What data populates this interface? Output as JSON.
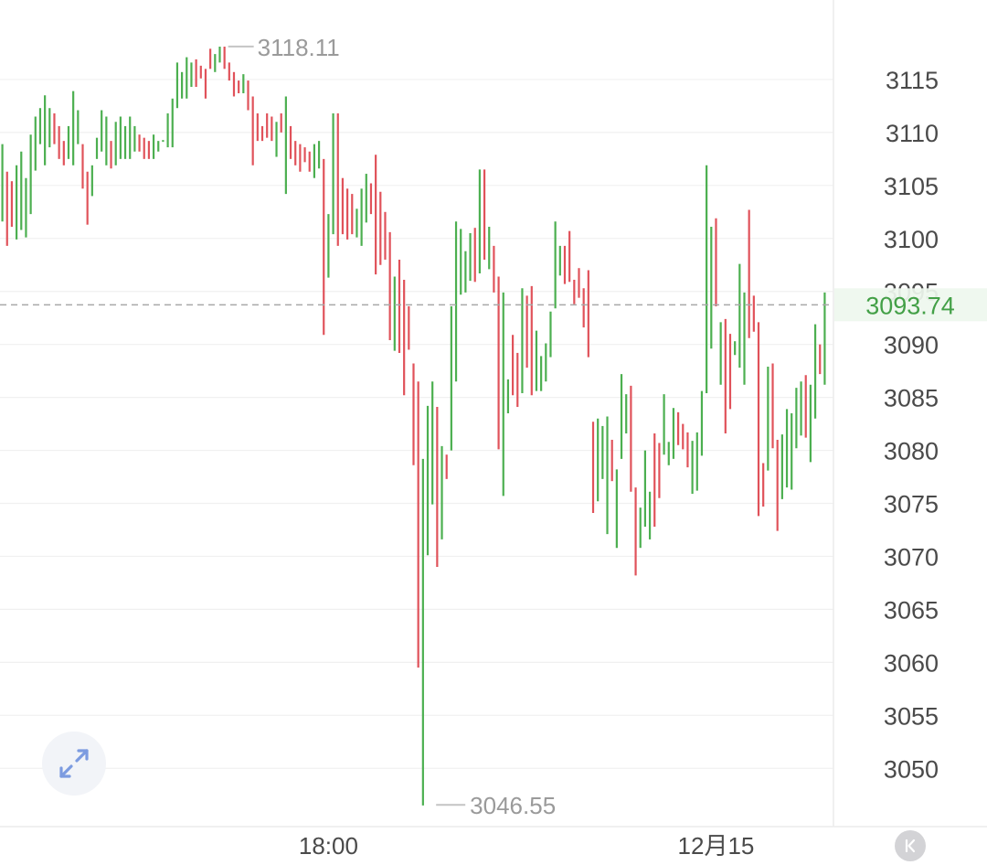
{
  "chart_data": {
    "type": "candlestick",
    "title": "",
    "xlabel": "",
    "ylabel": "",
    "ylim": [
      3044.5,
      3122.5
    ],
    "y_ticks": [
      3050,
      3055,
      3060,
      3065,
      3070,
      3075,
      3080,
      3085,
      3090,
      3095,
      3100,
      3105,
      3110,
      3115
    ],
    "y_tick_labels": [
      "3050",
      "3055",
      "3060",
      "3065",
      "3070",
      "3075",
      "3080",
      "3085",
      "3090",
      "3095",
      "3100",
      "3105",
      "3110",
      "3115"
    ],
    "x_labels": [
      {
        "label": "18:00",
        "index": 69
      },
      {
        "label": "12月15",
        "index": 151
      }
    ],
    "grid": true,
    "current_price": 3093.74,
    "current_price_label": "3093.74",
    "max_marker": {
      "label": "3118.11",
      "index": 47,
      "value": 3118.11
    },
    "min_marker": {
      "label": "3046.55",
      "index": 91,
      "value": 3046.55
    },
    "up_color": "#4caf50",
    "down_color": "#e0525a",
    "price_color": "#43a047",
    "candles": [
      {
        "h": 3108.9,
        "l": 3101.6,
        "dir": "up"
      },
      {
        "h": 3106.3,
        "l": 3099.3,
        "dir": "down"
      },
      {
        "h": 3105.4,
        "l": 3101.1,
        "dir": "down"
      },
      {
        "h": 3106.9,
        "l": 3099.9,
        "dir": "up"
      },
      {
        "h": 3108.2,
        "l": 3100.8,
        "dir": "up"
      },
      {
        "h": 3105.7,
        "l": 3100.1,
        "dir": "up"
      },
      {
        "h": 3109.8,
        "l": 3102.3,
        "dir": "up"
      },
      {
        "h": 3111.5,
        "l": 3106.4,
        "dir": "up"
      },
      {
        "h": 3112.3,
        "l": 3108.9,
        "dir": "up"
      },
      {
        "h": 3113.5,
        "l": 3106.9,
        "dir": "up"
      },
      {
        "h": 3112.3,
        "l": 3108.6,
        "dir": "up"
      },
      {
        "h": 3111.8,
        "l": 3108.9,
        "dir": "down"
      },
      {
        "h": 3110.6,
        "l": 3107.5,
        "dir": "down"
      },
      {
        "h": 3109.2,
        "l": 3106.9,
        "dir": "down"
      },
      {
        "h": 3110.6,
        "l": 3107.5,
        "dir": "up"
      },
      {
        "h": 3113.9,
        "l": 3106.9,
        "dir": "up"
      },
      {
        "h": 3112.1,
        "l": 3108.9,
        "dir": "up"
      },
      {
        "h": 3108.9,
        "l": 3104.7,
        "dir": "down"
      },
      {
        "h": 3106.3,
        "l": 3101.3,
        "dir": "down"
      },
      {
        "h": 3106.9,
        "l": 3104.0,
        "dir": "up"
      },
      {
        "h": 3109.5,
        "l": 3107.5,
        "dir": "up"
      },
      {
        "h": 3112.1,
        "l": 3108.2,
        "dir": "up"
      },
      {
        "h": 3111.5,
        "l": 3106.9,
        "dir": "up"
      },
      {
        "h": 3109.2,
        "l": 3106.6,
        "dir": "down"
      },
      {
        "h": 3111.0,
        "l": 3106.9,
        "dir": "up"
      },
      {
        "h": 3111.5,
        "l": 3107.5,
        "dir": "up"
      },
      {
        "h": 3110.6,
        "l": 3107.5,
        "dir": "up"
      },
      {
        "h": 3111.5,
        "l": 3107.5,
        "dir": "up"
      },
      {
        "h": 3110.6,
        "l": 3108.2,
        "dir": "up"
      },
      {
        "h": 3109.8,
        "l": 3108.2,
        "dir": "down"
      },
      {
        "h": 3109.5,
        "l": 3107.5,
        "dir": "down"
      },
      {
        "h": 3109.2,
        "l": 3107.5,
        "dir": "down"
      },
      {
        "h": 3109.8,
        "l": 3107.5,
        "dir": "up"
      },
      {
        "h": 3109.2,
        "l": 3108.2,
        "dir": "up"
      },
      {
        "h": 3109.2,
        "l": 3109.2,
        "dir": "up"
      },
      {
        "h": 3111.8,
        "l": 3108.6,
        "dir": "up"
      },
      {
        "h": 3113.2,
        "l": 3108.6,
        "dir": "up"
      },
      {
        "h": 3116.6,
        "l": 3112.3,
        "dir": "up"
      },
      {
        "h": 3115.7,
        "l": 3113.2,
        "dir": "up"
      },
      {
        "h": 3117.1,
        "l": 3113.2,
        "dir": "up"
      },
      {
        "h": 3116.6,
        "l": 3114.3,
        "dir": "up"
      },
      {
        "h": 3116.9,
        "l": 3114.3,
        "dir": "down"
      },
      {
        "h": 3116.3,
        "l": 3115.1,
        "dir": "down"
      },
      {
        "h": 3116.0,
        "l": 3113.2,
        "dir": "down"
      },
      {
        "h": 3117.9,
        "l": 3116.0,
        "dir": "down"
      },
      {
        "h": 3117.4,
        "l": 3115.7,
        "dir": "up"
      },
      {
        "h": 3118.1,
        "l": 3116.6,
        "dir": "up"
      },
      {
        "h": 3118.1,
        "l": 3116.0,
        "dir": "down"
      },
      {
        "h": 3116.6,
        "l": 3114.9,
        "dir": "down"
      },
      {
        "h": 3115.7,
        "l": 3113.4,
        "dir": "down"
      },
      {
        "h": 3114.9,
        "l": 3113.7,
        "dir": "down"
      },
      {
        "h": 3115.5,
        "l": 3113.7,
        "dir": "up"
      },
      {
        "h": 3114.9,
        "l": 3112.1,
        "dir": "down"
      },
      {
        "h": 3113.4,
        "l": 3106.9,
        "dir": "down"
      },
      {
        "h": 3111.8,
        "l": 3109.2,
        "dir": "down"
      },
      {
        "h": 3110.6,
        "l": 3109.2,
        "dir": "down"
      },
      {
        "h": 3111.8,
        "l": 3109.5,
        "dir": "down"
      },
      {
        "h": 3111.5,
        "l": 3109.2,
        "dir": "down"
      },
      {
        "h": 3111.0,
        "l": 3107.7,
        "dir": "up"
      },
      {
        "h": 3111.8,
        "l": 3110.0,
        "dir": "down"
      },
      {
        "h": 3113.4,
        "l": 3104.2,
        "dir": "up"
      },
      {
        "h": 3110.6,
        "l": 3107.5,
        "dir": "down"
      },
      {
        "h": 3109.2,
        "l": 3106.9,
        "dir": "down"
      },
      {
        "h": 3108.9,
        "l": 3106.3,
        "dir": "down"
      },
      {
        "h": 3108.6,
        "l": 3107.2,
        "dir": "down"
      },
      {
        "h": 3108.2,
        "l": 3106.3,
        "dir": "down"
      },
      {
        "h": 3108.9,
        "l": 3105.7,
        "dir": "up"
      },
      {
        "h": 3109.2,
        "l": 3106.6,
        "dir": "up"
      },
      {
        "h": 3107.5,
        "l": 3090.9,
        "dir": "down"
      },
      {
        "h": 3102.3,
        "l": 3096.3,
        "dir": "up"
      },
      {
        "h": 3111.8,
        "l": 3100.4,
        "dir": "up"
      },
      {
        "h": 3111.8,
        "l": 3099.3,
        "dir": "down"
      },
      {
        "h": 3105.7,
        "l": 3100.4,
        "dir": "down"
      },
      {
        "h": 3104.7,
        "l": 3099.9,
        "dir": "down"
      },
      {
        "h": 3104.2,
        "l": 3100.4,
        "dir": "down"
      },
      {
        "h": 3102.8,
        "l": 3100.1,
        "dir": "up"
      },
      {
        "h": 3104.7,
        "l": 3099.3,
        "dir": "up"
      },
      {
        "h": 3106.1,
        "l": 3101.5,
        "dir": "up"
      },
      {
        "h": 3105.2,
        "l": 3102.3,
        "dir": "down"
      },
      {
        "h": 3107.9,
        "l": 3096.6,
        "dir": "down"
      },
      {
        "h": 3104.4,
        "l": 3097.5,
        "dir": "down"
      },
      {
        "h": 3102.5,
        "l": 3098.0,
        "dir": "down"
      },
      {
        "h": 3100.6,
        "l": 3090.4,
        "dir": "down"
      },
      {
        "h": 3096.4,
        "l": 3089.4,
        "dir": "up"
      },
      {
        "h": 3098.0,
        "l": 3089.2,
        "dir": "down"
      },
      {
        "h": 3096.1,
        "l": 3085.2,
        "dir": "down"
      },
      {
        "h": 3093.6,
        "l": 3089.5,
        "dir": "down"
      },
      {
        "h": 3088.2,
        "l": 3078.6,
        "dir": "down"
      },
      {
        "h": 3086.5,
        "l": 3059.5,
        "dir": "down"
      },
      {
        "h": 3079.2,
        "l": 3046.5,
        "dir": "up"
      },
      {
        "h": 3084.2,
        "l": 3070.1,
        "dir": "up"
      },
      {
        "h": 3086.5,
        "l": 3074.9,
        "dir": "up"
      },
      {
        "h": 3084.1,
        "l": 3069.0,
        "dir": "down"
      },
      {
        "h": 3080.4,
        "l": 3071.6,
        "dir": "up"
      },
      {
        "h": 3079.6,
        "l": 3077.3,
        "dir": "down"
      },
      {
        "h": 3093.6,
        "l": 3080.0,
        "dir": "up"
      },
      {
        "h": 3101.6,
        "l": 3086.5,
        "dir": "up"
      },
      {
        "h": 3100.9,
        "l": 3094.7,
        "dir": "up"
      },
      {
        "h": 3098.8,
        "l": 3094.9,
        "dir": "up"
      },
      {
        "h": 3100.5,
        "l": 3096.0,
        "dir": "up"
      },
      {
        "h": 3101.0,
        "l": 3095.9,
        "dir": "down"
      },
      {
        "h": 3106.5,
        "l": 3096.7,
        "dir": "up"
      },
      {
        "h": 3106.5,
        "l": 3098.0,
        "dir": "down"
      },
      {
        "h": 3101.1,
        "l": 3097.1,
        "dir": "up"
      },
      {
        "h": 3099.3,
        "l": 3094.9,
        "dir": "down"
      },
      {
        "h": 3096.4,
        "l": 3080.1,
        "dir": "down"
      },
      {
        "h": 3094.9,
        "l": 3075.7,
        "dir": "up"
      },
      {
        "h": 3086.7,
        "l": 3083.5,
        "dir": "up"
      },
      {
        "h": 3090.9,
        "l": 3085.2,
        "dir": "down"
      },
      {
        "h": 3089.2,
        "l": 3084.1,
        "dir": "down"
      },
      {
        "h": 3095.3,
        "l": 3085.4,
        "dir": "up"
      },
      {
        "h": 3094.6,
        "l": 3087.8,
        "dir": "down"
      },
      {
        "h": 3095.5,
        "l": 3085.2,
        "dir": "down"
      },
      {
        "h": 3091.3,
        "l": 3085.6,
        "dir": "up"
      },
      {
        "h": 3088.9,
        "l": 3085.6,
        "dir": "up"
      },
      {
        "h": 3090.1,
        "l": 3086.5,
        "dir": "up"
      },
      {
        "h": 3093.1,
        "l": 3088.8,
        "dir": "up"
      },
      {
        "h": 3101.6,
        "l": 3093.4,
        "dir": "up"
      },
      {
        "h": 3099.3,
        "l": 3096.5,
        "dir": "up"
      },
      {
        "h": 3099.3,
        "l": 3095.7,
        "dir": "down"
      },
      {
        "h": 3100.7,
        "l": 3095.9,
        "dir": "down"
      },
      {
        "h": 3096.1,
        "l": 3093.8,
        "dir": "down"
      },
      {
        "h": 3097.2,
        "l": 3094.4,
        "dir": "down"
      },
      {
        "h": 3095.3,
        "l": 3091.6,
        "dir": "down"
      },
      {
        "h": 3097.0,
        "l": 3088.8,
        "dir": "down"
      },
      {
        "h": 3082.7,
        "l": 3074.1,
        "dir": "down"
      },
      {
        "h": 3083.0,
        "l": 3075.2,
        "dir": "up"
      },
      {
        "h": 3082.3,
        "l": 3077.3,
        "dir": "up"
      },
      {
        "h": 3083.2,
        "l": 3072.1,
        "dir": "up"
      },
      {
        "h": 3081.0,
        "l": 3077.1,
        "dir": "down"
      },
      {
        "h": 3078.2,
        "l": 3070.8,
        "dir": "up"
      },
      {
        "h": 3087.2,
        "l": 3079.2,
        "dir": "up"
      },
      {
        "h": 3085.3,
        "l": 3081.6,
        "dir": "up"
      },
      {
        "h": 3086.1,
        "l": 3076.1,
        "dir": "down"
      },
      {
        "h": 3076.5,
        "l": 3068.2,
        "dir": "down"
      },
      {
        "h": 3074.6,
        "l": 3070.8,
        "dir": "up"
      },
      {
        "h": 3080.0,
        "l": 3072.8,
        "dir": "up"
      },
      {
        "h": 3076.1,
        "l": 3071.6,
        "dir": "up"
      },
      {
        "h": 3081.6,
        "l": 3072.8,
        "dir": "down"
      },
      {
        "h": 3080.7,
        "l": 3075.5,
        "dir": "down"
      },
      {
        "h": 3085.3,
        "l": 3079.6,
        "dir": "up"
      },
      {
        "h": 3080.8,
        "l": 3078.6,
        "dir": "up"
      },
      {
        "h": 3084.0,
        "l": 3079.2,
        "dir": "up"
      },
      {
        "h": 3083.6,
        "l": 3080.5,
        "dir": "down"
      },
      {
        "h": 3082.5,
        "l": 3080.1,
        "dir": "down"
      },
      {
        "h": 3081.7,
        "l": 3078.4,
        "dir": "down"
      },
      {
        "h": 3080.9,
        "l": 3075.9,
        "dir": "up"
      },
      {
        "h": 3081.7,
        "l": 3076.2,
        "dir": "up"
      },
      {
        "h": 3085.6,
        "l": 3079.5,
        "dir": "up"
      },
      {
        "h": 3106.9,
        "l": 3085.4,
        "dir": "up"
      },
      {
        "h": 3101.1,
        "l": 3089.6,
        "dir": "up"
      },
      {
        "h": 3101.9,
        "l": 3093.6,
        "dir": "down"
      },
      {
        "h": 3092.1,
        "l": 3086.2,
        "dir": "up"
      },
      {
        "h": 3092.4,
        "l": 3081.6,
        "dir": "down"
      },
      {
        "h": 3091.0,
        "l": 3083.9,
        "dir": "down"
      },
      {
        "h": 3090.3,
        "l": 3089.0,
        "dir": "up"
      },
      {
        "h": 3097.6,
        "l": 3087.8,
        "dir": "up"
      },
      {
        "h": 3094.9,
        "l": 3086.2,
        "dir": "up"
      },
      {
        "h": 3102.7,
        "l": 3090.6,
        "dir": "down"
      },
      {
        "h": 3094.6,
        "l": 3091.2,
        "dir": "down"
      },
      {
        "h": 3092.1,
        "l": 3073.8,
        "dir": "down"
      },
      {
        "h": 3078.8,
        "l": 3074.7,
        "dir": "down"
      },
      {
        "h": 3087.9,
        "l": 3078.1,
        "dir": "up"
      },
      {
        "h": 3088.2,
        "l": 3080.2,
        "dir": "down"
      },
      {
        "h": 3081.0,
        "l": 3072.4,
        "dir": "down"
      },
      {
        "h": 3081.5,
        "l": 3075.4,
        "dir": "up"
      },
      {
        "h": 3083.9,
        "l": 3076.5,
        "dir": "up"
      },
      {
        "h": 3083.5,
        "l": 3076.3,
        "dir": "up"
      },
      {
        "h": 3085.9,
        "l": 3080.2,
        "dir": "up"
      },
      {
        "h": 3086.5,
        "l": 3081.4,
        "dir": "up"
      },
      {
        "h": 3087.1,
        "l": 3081.2,
        "dir": "down"
      },
      {
        "h": 3086.2,
        "l": 3078.9,
        "dir": "up"
      },
      {
        "h": 3091.9,
        "l": 3083.0,
        "dir": "up"
      },
      {
        "h": 3090.0,
        "l": 3087.2,
        "dir": "down"
      },
      {
        "h": 3094.9,
        "l": 3086.2,
        "dir": "up"
      }
    ]
  },
  "ui": {
    "expand_icon": "expand-arrows-icon",
    "k_icon": "k-collapse-icon",
    "k_label": "K"
  }
}
